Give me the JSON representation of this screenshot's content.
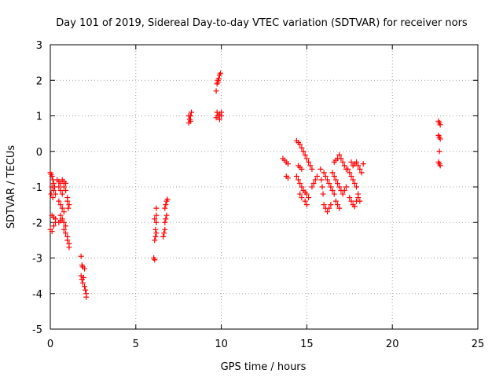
{
  "chart_data": {
    "type": "scatter",
    "title": "Day 101 of 2019, Sidereal Day-to-day VTEC variation (SDTVAR) for receiver nors",
    "xlabel": "GPS time / hours",
    "ylabel": "SDTVAR / TECUs",
    "xlim": [
      0,
      25
    ],
    "ylim": [
      -5,
      3
    ],
    "xticks": [
      0,
      5,
      10,
      15,
      20,
      25
    ],
    "yticks": [
      -5,
      -4,
      -3,
      -2,
      -1,
      0,
      1,
      2,
      3
    ],
    "grid": true,
    "marker": "+",
    "color": "#ff0000",
    "series": [
      {
        "name": "SDTVAR",
        "points": [
          [
            0.0,
            -0.6
          ],
          [
            0.05,
            -0.65
          ],
          [
            0.1,
            -0.7
          ],
          [
            0.15,
            -0.8
          ],
          [
            0.2,
            -0.9
          ],
          [
            0.25,
            -1.0
          ],
          [
            0.1,
            -1.0
          ],
          [
            0.2,
            -1.1
          ],
          [
            0.3,
            -1.2
          ],
          [
            0.15,
            -1.3
          ],
          [
            0.05,
            -1.2
          ],
          [
            0.1,
            -1.8
          ],
          [
            0.2,
            -1.85
          ],
          [
            0.3,
            -1.9
          ],
          [
            0.0,
            -2.2
          ],
          [
            0.1,
            -2.25
          ],
          [
            0.2,
            -2.1
          ],
          [
            0.3,
            -2.0
          ],
          [
            0.4,
            -0.8
          ],
          [
            0.5,
            -0.85
          ],
          [
            0.6,
            -0.9
          ],
          [
            0.5,
            -1.0
          ],
          [
            0.6,
            -1.1
          ],
          [
            0.7,
            -1.2
          ],
          [
            0.5,
            -1.4
          ],
          [
            0.6,
            -1.5
          ],
          [
            0.7,
            -1.6
          ],
          [
            0.8,
            -1.7
          ],
          [
            0.7,
            -0.8
          ],
          [
            0.8,
            -0.85
          ],
          [
            0.9,
            -0.9
          ],
          [
            0.8,
            -1.0
          ],
          [
            0.9,
            -1.1
          ],
          [
            1.0,
            -1.3
          ],
          [
            1.0,
            -1.4
          ],
          [
            1.1,
            -1.5
          ],
          [
            1.05,
            -1.6
          ],
          [
            0.6,
            -1.8
          ],
          [
            0.7,
            -1.9
          ],
          [
            0.8,
            -2.0
          ],
          [
            0.9,
            -2.1
          ],
          [
            0.8,
            -2.2
          ],
          [
            0.9,
            -2.3
          ],
          [
            1.0,
            -2.4
          ],
          [
            1.0,
            -2.5
          ],
          [
            1.1,
            -2.6
          ],
          [
            1.1,
            -2.7
          ],
          [
            0.5,
            -2.0
          ],
          [
            0.6,
            -1.95
          ],
          [
            1.8,
            -2.95
          ],
          [
            1.85,
            -3.2
          ],
          [
            1.9,
            -3.25
          ],
          [
            2.0,
            -3.3
          ],
          [
            1.8,
            -3.5
          ],
          [
            1.85,
            -3.6
          ],
          [
            1.9,
            -3.7
          ],
          [
            2.0,
            -3.8
          ],
          [
            2.05,
            -3.9
          ],
          [
            2.1,
            -4.0
          ],
          [
            2.1,
            -4.1
          ],
          [
            1.95,
            -3.55
          ],
          [
            6.05,
            -3.0
          ],
          [
            6.1,
            -3.05
          ],
          [
            6.1,
            -2.5
          ],
          [
            6.15,
            -2.4
          ],
          [
            6.2,
            -2.3
          ],
          [
            6.15,
            -2.2
          ],
          [
            6.2,
            -2.0
          ],
          [
            6.1,
            -1.9
          ],
          [
            6.2,
            -1.8
          ],
          [
            6.2,
            -1.6
          ],
          [
            6.6,
            -2.4
          ],
          [
            6.65,
            -2.3
          ],
          [
            6.7,
            -2.2
          ],
          [
            6.7,
            -2.0
          ],
          [
            6.75,
            -1.9
          ],
          [
            6.8,
            -1.8
          ],
          [
            6.7,
            -1.6
          ],
          [
            6.75,
            -1.5
          ],
          [
            6.8,
            -1.4
          ],
          [
            6.85,
            -1.35
          ],
          [
            8.1,
            0.8
          ],
          [
            8.15,
            0.9
          ],
          [
            8.2,
            1.0
          ],
          [
            8.25,
            1.1
          ],
          [
            8.1,
            1.0
          ],
          [
            8.2,
            0.85
          ],
          [
            9.7,
            1.7
          ],
          [
            9.75,
            1.9
          ],
          [
            9.8,
            2.0
          ],
          [
            9.85,
            2.05
          ],
          [
            9.9,
            2.15
          ],
          [
            9.95,
            2.2
          ],
          [
            9.8,
            1.95
          ],
          [
            9.7,
            0.95
          ],
          [
            9.8,
            1.0
          ],
          [
            9.9,
            1.05
          ],
          [
            10.0,
            1.0
          ],
          [
            9.75,
            1.1
          ],
          [
            9.9,
            0.9
          ],
          [
            10.0,
            1.1
          ],
          [
            13.6,
            -0.2
          ],
          [
            13.7,
            -0.25
          ],
          [
            13.8,
            -0.3
          ],
          [
            13.9,
            -0.35
          ],
          [
            13.8,
            -0.7
          ],
          [
            13.9,
            -0.75
          ],
          [
            14.4,
            0.3
          ],
          [
            14.5,
            0.25
          ],
          [
            14.6,
            0.2
          ],
          [
            14.7,
            0.1
          ],
          [
            14.8,
            0.0
          ],
          [
            14.9,
            -0.1
          ],
          [
            15.0,
            -0.2
          ],
          [
            15.1,
            -0.3
          ],
          [
            15.2,
            -0.4
          ],
          [
            15.3,
            -0.5
          ],
          [
            14.5,
            -0.4
          ],
          [
            14.6,
            -0.45
          ],
          [
            14.7,
            -0.5
          ],
          [
            14.4,
            -0.7
          ],
          [
            14.5,
            -0.8
          ],
          [
            14.6,
            -0.9
          ],
          [
            14.7,
            -1.0
          ],
          [
            14.8,
            -1.1
          ],
          [
            14.9,
            -1.15
          ],
          [
            15.0,
            -1.2
          ],
          [
            15.1,
            -1.3
          ],
          [
            14.6,
            -1.2
          ],
          [
            14.7,
            -1.3
          ],
          [
            14.9,
            -1.4
          ],
          [
            15.0,
            -1.5
          ],
          [
            15.3,
            -1.0
          ],
          [
            15.4,
            -0.9
          ],
          [
            15.5,
            -0.8
          ],
          [
            15.6,
            -0.7
          ],
          [
            15.8,
            -0.5
          ],
          [
            15.85,
            -0.8
          ],
          [
            15.9,
            -1.0
          ],
          [
            15.95,
            -1.2
          ],
          [
            16.0,
            -1.5
          ],
          [
            16.1,
            -1.6
          ],
          [
            16.2,
            -1.7
          ],
          [
            16.3,
            -1.6
          ],
          [
            16.4,
            -1.5
          ],
          [
            16.0,
            -0.6
          ],
          [
            16.1,
            -0.7
          ],
          [
            16.2,
            -0.8
          ],
          [
            16.3,
            -0.9
          ],
          [
            16.4,
            -1.0
          ],
          [
            16.5,
            -1.1
          ],
          [
            16.6,
            -1.2
          ],
          [
            16.7,
            -1.4
          ],
          [
            16.8,
            -1.5
          ],
          [
            16.9,
            -1.6
          ],
          [
            16.6,
            -0.3
          ],
          [
            16.7,
            -0.25
          ],
          [
            16.8,
            -0.2
          ],
          [
            16.9,
            -0.1
          ],
          [
            17.0,
            -0.2
          ],
          [
            17.1,
            -0.3
          ],
          [
            17.2,
            -0.4
          ],
          [
            17.3,
            -0.5
          ],
          [
            16.5,
            -0.6
          ],
          [
            16.6,
            -0.7
          ],
          [
            16.7,
            -0.8
          ],
          [
            16.8,
            -0.9
          ],
          [
            16.9,
            -1.0
          ],
          [
            17.0,
            -1.1
          ],
          [
            17.1,
            -1.2
          ],
          [
            17.2,
            -1.1
          ],
          [
            17.3,
            -1.0
          ],
          [
            17.4,
            -0.5
          ],
          [
            17.5,
            -0.6
          ],
          [
            17.6,
            -0.7
          ],
          [
            17.7,
            -0.8
          ],
          [
            17.8,
            -0.9
          ],
          [
            17.9,
            -1.0
          ],
          [
            18.0,
            -1.2
          ],
          [
            18.1,
            -1.4
          ],
          [
            17.5,
            -1.3
          ],
          [
            17.6,
            -1.4
          ],
          [
            17.7,
            -1.5
          ],
          [
            17.8,
            -1.55
          ],
          [
            17.9,
            -1.4
          ],
          [
            18.0,
            -1.3
          ],
          [
            17.6,
            -0.3
          ],
          [
            17.7,
            -0.4
          ],
          [
            17.8,
            -0.35
          ],
          [
            17.9,
            -0.3
          ],
          [
            18.0,
            -0.4
          ],
          [
            18.1,
            -0.5
          ],
          [
            18.2,
            -0.6
          ],
          [
            18.3,
            -0.35
          ],
          [
            22.7,
            0.85
          ],
          [
            22.75,
            0.8
          ],
          [
            22.8,
            0.75
          ],
          [
            22.7,
            0.45
          ],
          [
            22.75,
            0.4
          ],
          [
            22.8,
            0.35
          ],
          [
            22.7,
            -0.3
          ],
          [
            22.75,
            -0.35
          ],
          [
            22.8,
            -0.4
          ],
          [
            22.75,
            0.0
          ]
        ]
      }
    ]
  }
}
